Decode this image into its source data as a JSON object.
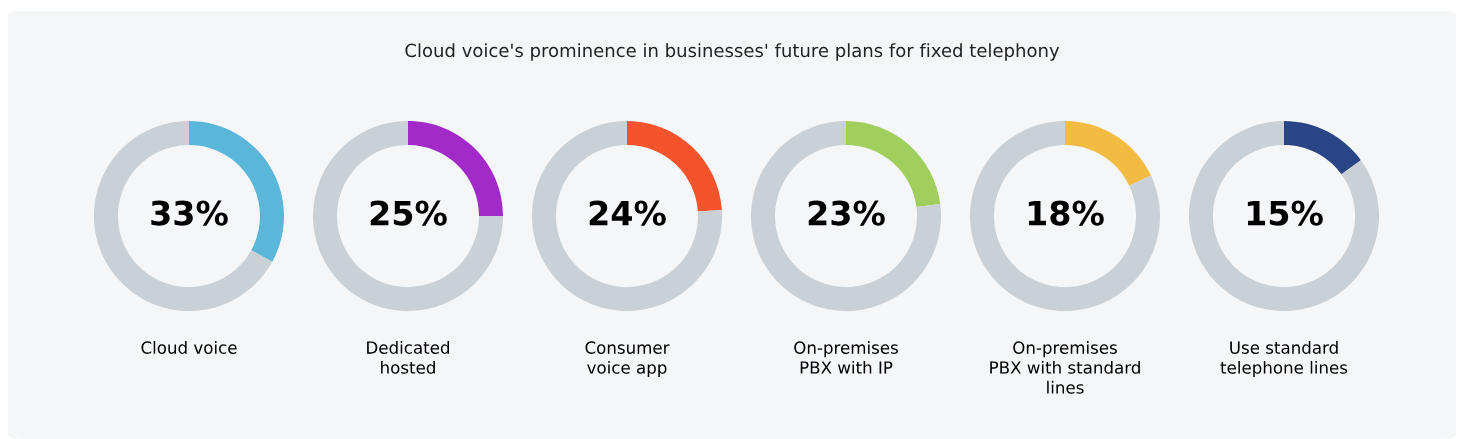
{
  "chart_data": [
    {
      "type": "donut",
      "title": "Cloud voice's prominence in businesses' future plans for fixed telephony",
      "xlabel": "Cloud voice",
      "categories": [
        null,
        null
      ],
      "values": [
        33,
        67
      ],
      "colors": [
        "#5ab7da",
        "#c9d1d6"
      ],
      "value_labels": [
        "33%",
        null
      ]
    },
    {
      "type": "donut",
      "xlabel": "Dedicated\nhosted",
      "categories": [
        null,
        null
      ],
      "values": [
        25,
        75
      ],
      "colors": [
        "#a22ac9",
        "#c9d1d6"
      ],
      "value_labels": [
        "25%",
        null
      ]
    },
    {
      "type": "donut",
      "xlabel": "Consumer\nvoice app",
      "categories": [
        null,
        null
      ],
      "values": [
        24,
        76
      ],
      "colors": [
        "#f4532b",
        "#c9d1d6"
      ],
      "value_labels": [
        "24%",
        null
      ]
    },
    {
      "type": "donut",
      "xlabel": "On-premises\nPBX with IP",
      "categories": [
        null,
        null
      ],
      "values": [
        23,
        77
      ],
      "colors": [
        "#a1cf5d",
        "#c9d1d6"
      ],
      "value_labels": [
        "23%",
        null
      ]
    },
    {
      "type": "donut",
      "xlabel": "On-premises\nPBX with standard\nlines",
      "categories": [
        null,
        null
      ],
      "values": [
        18,
        82
      ],
      "colors": [
        "#f2bb42",
        "#c9d1d6"
      ],
      "value_labels": [
        "18%",
        null
      ]
    },
    {
      "type": "donut",
      "xlabel": "Use standard\ntelephone lines",
      "categories": [
        null,
        null
      ],
      "values": [
        15,
        85
      ],
      "colors": [
        "#2a4585",
        "#c9d1d6"
      ],
      "value_labels": [
        "15%",
        null
      ]
    }
  ]
}
